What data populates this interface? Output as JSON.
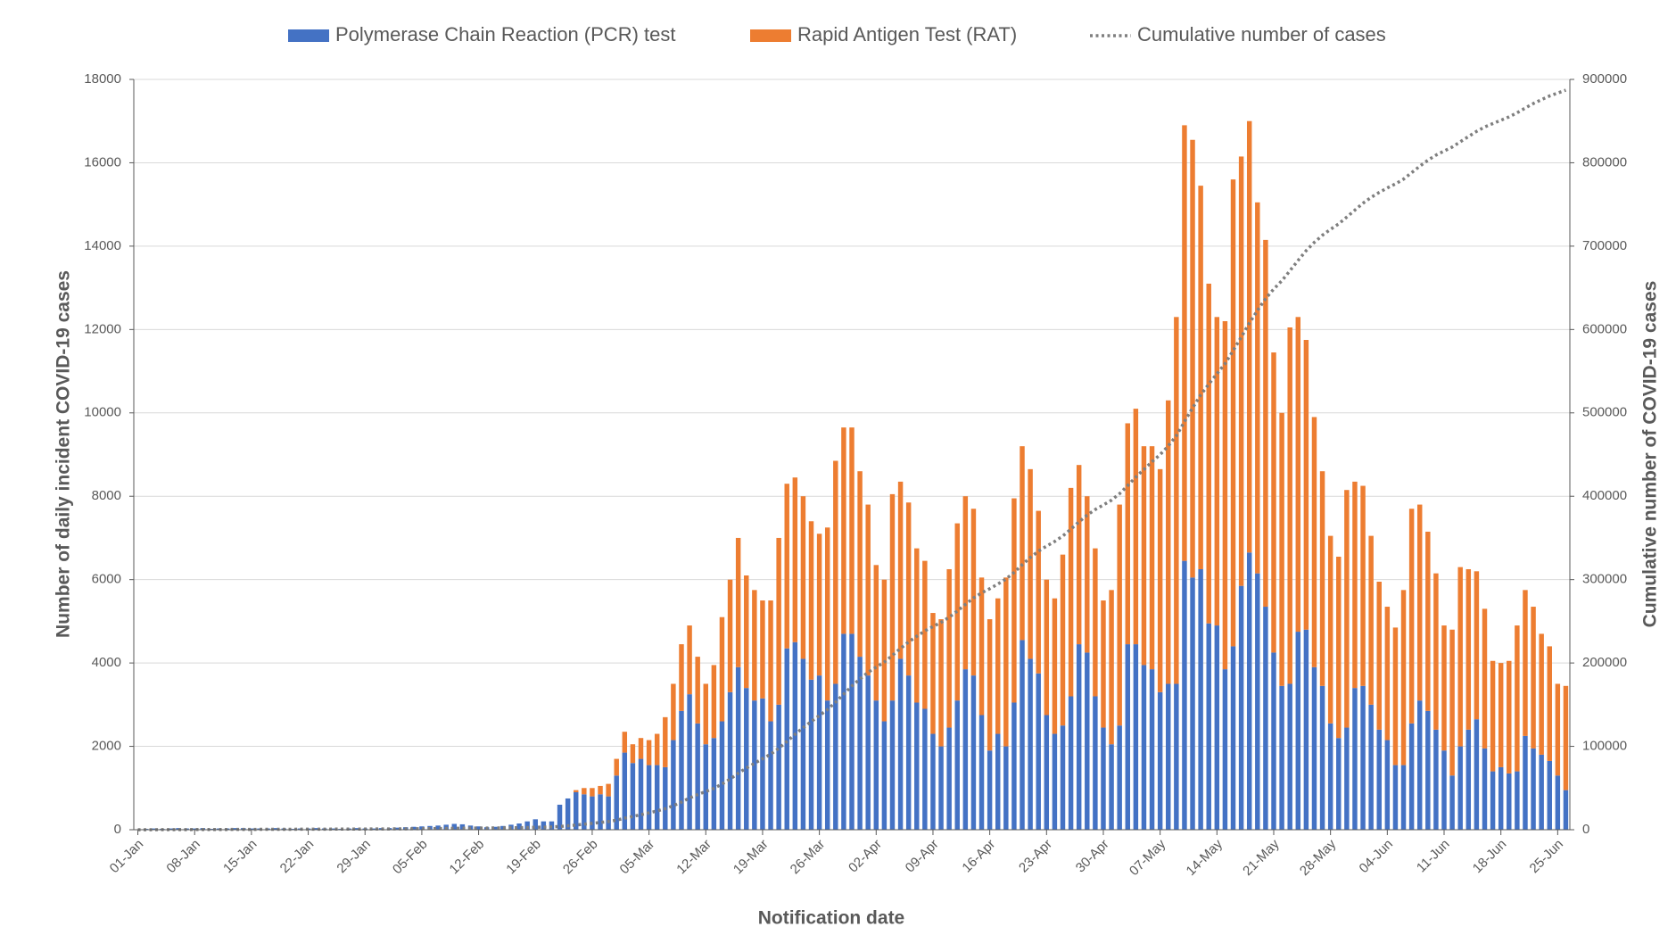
{
  "chart_data": {
    "type": "bar",
    "stacked": true,
    "grid": true,
    "legend": "top",
    "x_label": "Notification date",
    "y_label": "Number of daily incident COVID-19 cases",
    "y2_label": "Cumulative number of COVID-19 cases",
    "ylim": [
      0,
      18000
    ],
    "yticks": [
      0,
      2000,
      4000,
      6000,
      8000,
      10000,
      12000,
      14000,
      16000,
      18000
    ],
    "y2lim": [
      0,
      900000
    ],
    "y2ticks": [
      0,
      100000,
      200000,
      300000,
      400000,
      500000,
      600000,
      700000,
      800000,
      900000
    ],
    "categories": [
      "01-Jan",
      null,
      null,
      null,
      null,
      null,
      null,
      "08-Jan",
      null,
      null,
      null,
      null,
      null,
      null,
      "15-Jan",
      null,
      null,
      null,
      null,
      null,
      null,
      "22-Jan",
      null,
      null,
      null,
      null,
      null,
      null,
      "29-Jan",
      null,
      null,
      null,
      null,
      null,
      null,
      "05-Feb",
      null,
      null,
      null,
      null,
      null,
      null,
      "12-Feb",
      null,
      null,
      null,
      null,
      null,
      null,
      "19-Feb",
      null,
      null,
      null,
      null,
      null,
      null,
      "26-Feb",
      null,
      null,
      null,
      null,
      null,
      null,
      "05-Mar",
      null,
      null,
      null,
      null,
      null,
      null,
      "12-Mar",
      null,
      null,
      null,
      null,
      null,
      null,
      "19-Mar",
      null,
      null,
      null,
      null,
      null,
      null,
      "26-Mar",
      null,
      null,
      null,
      null,
      null,
      null,
      "02-Apr",
      null,
      null,
      null,
      null,
      null,
      null,
      "09-Apr",
      null,
      null,
      null,
      null,
      null,
      null,
      "16-Apr",
      null,
      null,
      null,
      null,
      null,
      null,
      "23-Apr",
      null,
      null,
      null,
      null,
      null,
      null,
      "30-Apr",
      null,
      null,
      null,
      null,
      null,
      null,
      "07-May",
      null,
      null,
      null,
      null,
      null,
      null,
      "14-May",
      null,
      null,
      null,
      null,
      null,
      null,
      "21-May",
      null,
      null,
      null,
      null,
      null,
      null,
      "28-May",
      null,
      null,
      null,
      null,
      null,
      null,
      "04-Jun",
      null,
      null,
      null,
      null,
      null,
      null,
      "11-Jun",
      null,
      null,
      null,
      null,
      null,
      null,
      "18-Jun",
      null,
      null,
      null,
      null,
      null,
      null,
      "25-Jun",
      null
    ],
    "series": [
      {
        "name": "Polymerase Chain Reaction (PCR) test",
        "type": "bar",
        "color": "#4472c4",
        "values": [
          10,
          20,
          30,
          20,
          30,
          40,
          30,
          30,
          40,
          20,
          30,
          30,
          40,
          40,
          30,
          30,
          30,
          40,
          30,
          20,
          30,
          30,
          40,
          30,
          30,
          20,
          30,
          40,
          30,
          30,
          40,
          40,
          50,
          60,
          70,
          80,
          90,
          100,
          120,
          140,
          130,
          100,
          80,
          60,
          70,
          90,
          120,
          150,
          200,
          250,
          200,
          200,
          600,
          750,
          900,
          850,
          800,
          850,
          800,
          1300,
          1850,
          1600,
          1700,
          1550,
          1550,
          1500,
          2150,
          2850,
          3250,
          2550,
          2050,
          2200,
          2600,
          3300,
          3900,
          3400,
          3100,
          3150,
          2600,
          3000,
          4350,
          4500,
          4100,
          3600,
          3700,
          3100,
          3500,
          4700,
          4700,
          4150,
          3700,
          3100,
          2600,
          3100,
          4100,
          3700,
          3050,
          2900,
          2300,
          2000,
          2450,
          3100,
          3850,
          3700,
          2750,
          1900,
          2300,
          2000,
          3050,
          4550,
          4100,
          3750,
          2750,
          2300,
          2500,
          3200,
          4450,
          4250,
          3200,
          2450,
          2050,
          2500,
          4450,
          4450,
          3950,
          3850,
          3300,
          3500,
          3500,
          6450,
          6050,
          6250,
          4950,
          4900,
          3850,
          4400,
          5850,
          6650,
          6150,
          5350,
          4250,
          3450,
          3500,
          4750,
          4800,
          3900,
          3450,
          2550,
          2200,
          2450,
          3400,
          3450,
          3000,
          2400,
          2150,
          1550,
          1550,
          2550,
          3100,
          2850,
          2400,
          1900,
          1300,
          2000,
          2400,
          2650,
          1950,
          1400,
          1500,
          1350,
          1400,
          2250,
          1950,
          1800,
          1650,
          1300,
          950
        ]
      },
      {
        "name": "Rapid Antigen Test (RAT)",
        "type": "bar",
        "color": "#ed7d31",
        "values": [
          0,
          0,
          0,
          0,
          0,
          0,
          0,
          0,
          0,
          0,
          0,
          0,
          0,
          0,
          0,
          0,
          0,
          0,
          0,
          0,
          0,
          0,
          0,
          0,
          0,
          0,
          0,
          0,
          0,
          0,
          0,
          0,
          0,
          0,
          0,
          0,
          0,
          0,
          0,
          0,
          0,
          0,
          0,
          0,
          0,
          0,
          0,
          0,
          0,
          0,
          0,
          0,
          0,
          0,
          50,
          150,
          200,
          200,
          300,
          400,
          500,
          450,
          500,
          600,
          750,
          1200,
          1350,
          1600,
          1650,
          1600,
          1450,
          1750,
          2500,
          2700,
          3100,
          2700,
          2650,
          2350,
          2900,
          4000,
          3950,
          3950,
          3900,
          3800,
          3400,
          4150,
          5350,
          4950,
          4950,
          4450,
          4100,
          3250,
          3400,
          4950,
          4250,
          4150,
          3700,
          3550,
          2900,
          3050,
          3800,
          4250,
          4150,
          4000,
          3300,
          3150,
          3250,
          4050,
          4900,
          4650,
          4550,
          3900,
          3250,
          3250,
          4100,
          5000,
          4300,
          3750,
          3550,
          3050,
          3700,
          5300,
          5300,
          5650,
          5250,
          5350,
          5350,
          6800,
          8800,
          10450,
          10500,
          9200,
          8150,
          7400,
          8350,
          11200,
          10300,
          10350,
          8900,
          8800,
          7200,
          6550,
          8550,
          7550,
          6950,
          6000,
          5150,
          4500,
          4350,
          5700,
          4950,
          4800,
          4050,
          3550,
          3200,
          3300,
          4200,
          5150,
          4700,
          4300,
          3750,
          3000,
          3500,
          4300,
          3850,
          3550,
          3350,
          2650,
          2500,
          2700,
          3500,
          3500,
          3400,
          2900,
          2750,
          2200,
          2500
        ]
      },
      {
        "name": "Cumulative number of cases",
        "type": "line",
        "axis": "y2",
        "color": "#7f7f7f",
        "values": [
          10,
          30,
          60,
          80,
          110,
          150,
          180,
          210,
          250,
          270,
          300,
          330,
          370,
          410,
          440,
          470,
          500,
          540,
          570,
          590,
          620,
          650,
          690,
          720,
          750,
          770,
          800,
          840,
          870,
          900,
          940,
          980,
          1030,
          1090,
          1160,
          1240,
          1330,
          1430,
          1550,
          1690,
          1820,
          1920,
          2000,
          2060,
          2130,
          2220,
          2340,
          2490,
          2690,
          2940,
          3140,
          3340,
          3940,
          4690,
          5640,
          6640,
          7640,
          8690,
          9790,
          11490,
          13840,
          15890,
          18090,
          20240,
          22540,
          25240,
          28740,
          33190,
          38090,
          42240,
          45740,
          49690,
          54790,
          60790,
          67790,
          73890,
          79640,
          85140,
          90640,
          97640,
          105940,
          114390,
          122390,
          129790,
          136890,
          144140,
          152990,
          162640,
          172290,
          180890,
          188690,
          195040,
          201040,
          209090,
          217440,
          225290,
          232040,
          238490,
          243690,
          248740,
          254990,
          262340,
          270340,
          278040,
          284090,
          289140,
          294690,
          300740,
          308690,
          317890,
          326540,
          334190,
          340190,
          345740,
          352340,
          360540,
          369290,
          377290,
          384040,
          389540,
          395290,
          403090,
          412840,
          422940,
          432140,
          441340,
          449990,
          460290,
          472590,
          489490,
          506040,
          521490,
          534590,
          546890,
          559090,
          574690,
          590840,
          607840,
          622890,
          637040,
          648490,
          658490,
          670540,
          682840,
          694590,
          704490,
          713090,
          720140,
          726690,
          734840,
          743190,
          751440,
          758490,
          764440,
          769790,
          774640,
          780390,
          788090,
          795890,
          803040,
          809190,
          814090,
          818890,
          825190,
          831440,
          837640,
          842940,
          846990,
          850990,
          855040,
          859940,
          865690,
          871040,
          875740,
          880140,
          883640,
          887090
        ]
      }
    ]
  }
}
